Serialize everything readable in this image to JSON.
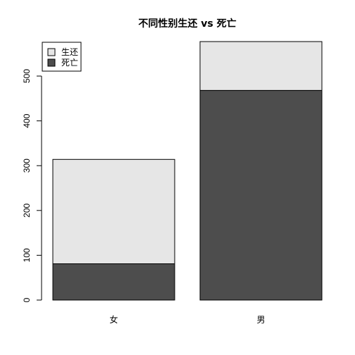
{
  "chart_data": {
    "type": "bar",
    "stacked": true,
    "title": "不同性别生还 vs 死亡",
    "xlabel": "",
    "ylabel": "",
    "categories": [
      "女",
      "男"
    ],
    "series": [
      {
        "name": "死亡",
        "values": [
          81,
          468
        ]
      },
      {
        "name": "生还",
        "values": [
          233,
          109
        ]
      }
    ],
    "ylim": [
      0,
      578
    ],
    "yticks": [
      0,
      100,
      200,
      300,
      400,
      500
    ],
    "grid": false,
    "legend": {
      "position": "top-left",
      "entries": [
        "生还",
        "死亡"
      ]
    },
    "colors": {
      "生还": "#e6e6e6",
      "死亡": "#4d4d4d",
      "border": "#000000"
    }
  }
}
